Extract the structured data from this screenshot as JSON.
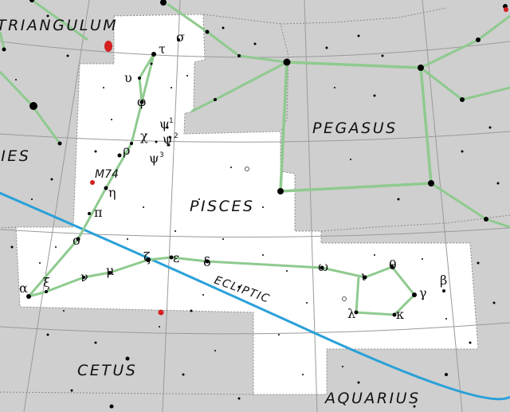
{
  "map": {
    "constellations": {
      "triangulum": "TRIANGULUM",
      "aries": "ARIES",
      "pegasus": "PEGASUS",
      "pisces": "PISCES",
      "cetus": "CETUS",
      "aquarius": "AQUARIUS"
    },
    "ecliptic_label": "ECLIPTIC",
    "deep_sky": {
      "m74": "M74"
    },
    "stars": {
      "sigma": "σ",
      "tau": "τ",
      "upsilon": "υ",
      "phi": "φ",
      "chi": "χ",
      "psi1": "ψ",
      "psi2": "ψ",
      "psi3": "ψ",
      "psi1_sup": "1",
      "psi2_sup": "2",
      "psi3_sup": "3",
      "rho": "ρ",
      "eta": "η",
      "pi": "π",
      "omicron": "ο",
      "alpha": "α",
      "xi": "ξ",
      "nu": "ν",
      "mu": "μ",
      "zeta": "ζ",
      "epsilon": "ε",
      "delta": "δ",
      "omega": "ω",
      "iota": "ι",
      "theta": "θ",
      "gamma": "γ",
      "beta": "β",
      "lambda": "λ",
      "kappa": "κ"
    },
    "colors": {
      "sky": "#cfcfcf",
      "region": "#ffffff",
      "grid": "#9a9a9a",
      "boundary": "#8a8a8a",
      "figure": "#8fca8f",
      "ecliptic": "#2aa0d8",
      "star": "#000000",
      "galaxy": "#d42020"
    }
  }
}
